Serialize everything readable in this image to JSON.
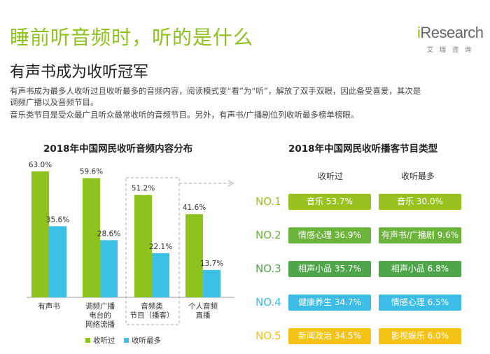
{
  "header": {
    "title": "睡前听音频时，听的是什么",
    "subtitle": "有声书成为收听冠军",
    "paragraph_lines": [
      "有声书成为最多人收听过且收听最多的音频内容，阅读模式变“看”为“听”，解放了双手双眼，因此备受喜爱，其次是",
      "调频广播以及音频节目。",
      "音乐类节目是受众最广且听众最常收听的音频节目。另外，有声书/广播剧位列收听最多榜单榜眼。"
    ]
  },
  "logo": {
    "i": "i",
    "main": "Research",
    "sub": "艾瑞咨询"
  },
  "colors": {
    "title_green": "#8dc21f",
    "bar_green": "#8dc21f",
    "bar_blue": "#3dc0e6",
    "rank_colors": [
      "#99c221",
      "#6cb33b",
      "#4fa64a",
      "#3dbde5",
      "#f5c316"
    ]
  },
  "chart_data": [
    {
      "type": "bar",
      "title": "2018年中国网民收听音频内容分布",
      "categories": [
        [
          "有声书"
        ],
        [
          "调频广播",
          "电台的",
          "网络流播"
        ],
        [
          "音频类",
          "节目（播客）"
        ],
        [
          "个人音频",
          "直播"
        ]
      ],
      "series": [
        {
          "name": "收听过",
          "values": [
            63.0,
            59.6,
            51.2,
            41.6
          ]
        },
        {
          "name": "收听最多",
          "values": [
            35.6,
            28.6,
            22.1,
            13.7
          ]
        }
      ],
      "highlighted_category": 2,
      "legend": "bottom-left",
      "ylim": [
        0,
        70
      ]
    },
    {
      "type": "table",
      "title": "2018年中国网民收听播客节目类型",
      "columns": [
        "收听过",
        "收听最多"
      ],
      "rows": [
        {
          "rank": "NO.1",
          "listened": "音乐 53.7%",
          "most": "音乐 30.0%"
        },
        {
          "rank": "NO.2",
          "listened": "情感心理 36.9%",
          "most": "有声书/广播剧 9.6%"
        },
        {
          "rank": "NO.3",
          "listened": "相声小品 35.7%",
          "most": "相声小品 6.8%"
        },
        {
          "rank": "NO.4",
          "listened": "健康养生 34.7%",
          "most": "情感心理 6.5%"
        },
        {
          "rank": "NO.5",
          "listened": "新闻政治 34.5%",
          "most": "影视娱乐 6.0%"
        }
      ]
    }
  ]
}
